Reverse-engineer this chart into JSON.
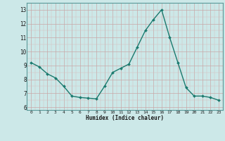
{
  "x": [
    0,
    1,
    2,
    3,
    4,
    5,
    6,
    7,
    8,
    9,
    10,
    11,
    12,
    13,
    14,
    15,
    16,
    17,
    18,
    19,
    20,
    21,
    22,
    23
  ],
  "y": [
    9.2,
    8.9,
    8.4,
    8.1,
    7.5,
    6.8,
    6.7,
    6.65,
    6.6,
    7.5,
    8.5,
    8.8,
    9.1,
    10.3,
    11.5,
    12.3,
    13.0,
    11.0,
    9.2,
    7.4,
    6.8,
    6.8,
    6.7,
    6.5
  ],
  "line_color": "#1a7a6e",
  "marker_color": "#1a7a6e",
  "bg_color": "#cce8e8",
  "grid_color_major": "#aacece",
  "xlabel": "Humidex (Indice chaleur)",
  "xlim": [
    -0.5,
    23.5
  ],
  "ylim": [
    5.8,
    13.5
  ],
  "yticks": [
    6,
    7,
    8,
    9,
    10,
    11,
    12,
    13
  ],
  "xticks": [
    0,
    1,
    2,
    3,
    4,
    5,
    6,
    7,
    8,
    9,
    10,
    11,
    12,
    13,
    14,
    15,
    16,
    17,
    18,
    19,
    20,
    21,
    22,
    23
  ],
  "font_family": "monospace"
}
